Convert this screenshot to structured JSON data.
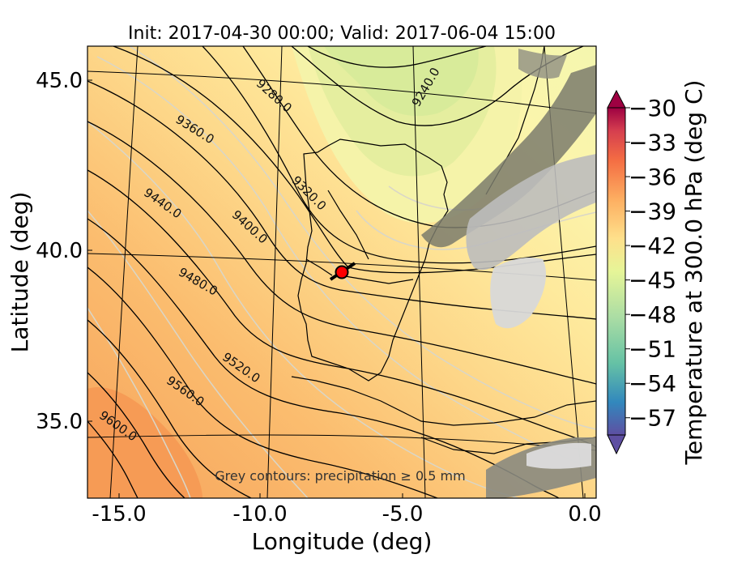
{
  "title": "Init: 2017-04-30 00:00; Valid: 2017-06-04 15:00",
  "xlabel": "Longitude (deg)",
  "ylabel": "Latitude (deg)",
  "colorbar_label": "Temperature at 300.0 hPa (deg C)",
  "note": "Grey contours: precipitation ≥ 0.5 mm",
  "colors": {
    "warm": "#f7a55e",
    "mid": "#fde597",
    "cool": "#dcea98",
    "coast": "#000000",
    "marker": "#ff0000"
  },
  "chart_data": {
    "type": "heatmap",
    "x_ticks": [
      "-15.0",
      "-10.0",
      "-5.0",
      "0.0"
    ],
    "y_ticks": [
      "45.0",
      "40.0",
      "35.0"
    ],
    "xlim": [
      -16,
      0
    ],
    "ylim": [
      32.8,
      46.2
    ],
    "colorbar": {
      "ticks": [
        "−30",
        "−33",
        "−36",
        "−39",
        "−42",
        "−45",
        "−48",
        "−51",
        "−54",
        "−57"
      ],
      "range": [
        -58.5,
        -30
      ],
      "extend": "both"
    },
    "height_contours": [
      {
        "label": "9240.0"
      },
      {
        "label": "9280.0"
      },
      {
        "label": "9320.0"
      },
      {
        "label": "9360.0"
      },
      {
        "label": "9400.0"
      },
      {
        "label": "9440.0"
      },
      {
        "label": "9480.0"
      },
      {
        "label": "9520.0"
      },
      {
        "label": "9560.0"
      },
      {
        "label": "9600.0"
      }
    ],
    "marker": {
      "lon": -7.6,
      "lat": 39.4
    }
  }
}
